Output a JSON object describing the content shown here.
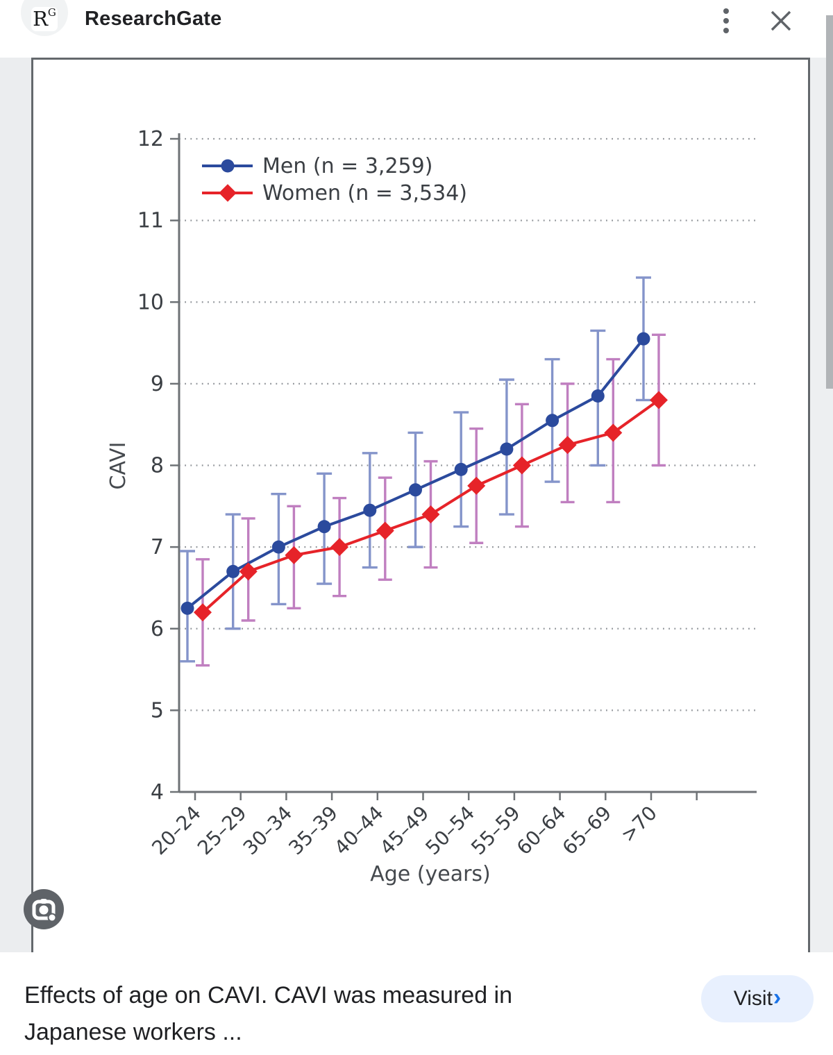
{
  "topbar": {
    "source_name": "ResearchGate",
    "logo_main": "R",
    "logo_sup": "G"
  },
  "chart_data": {
    "type": "line",
    "xlabel": "Age (years)",
    "ylabel": "CAVI",
    "ylim": [
      4,
      12
    ],
    "yticks": [
      4,
      5,
      6,
      7,
      8,
      9,
      10,
      11,
      12
    ],
    "grid": "horizontal dotted lines at every integer y",
    "legend_position": "top-left inside plot",
    "error_bars": "mean ± SD vertical bars with caps, dodged left (men) / right (women)",
    "categories": [
      "20–24",
      "25–29",
      "30–34",
      "35–39",
      "40–44",
      "45–49",
      "50–54",
      "55–59",
      "60–64",
      "65–69",
      ">70"
    ],
    "series": [
      {
        "name": "Men (n = 3,259)",
        "marker": "circle",
        "color": "#2b4a9d",
        "error_color": "#8494ca",
        "values": [
          6.25,
          6.7,
          7.0,
          7.25,
          7.45,
          7.7,
          7.95,
          8.2,
          8.55,
          8.85,
          9.55
        ],
        "err_low": [
          5.6,
          6.0,
          6.3,
          6.55,
          6.75,
          7.0,
          7.25,
          7.4,
          7.8,
          8.0,
          8.8
        ],
        "err_high": [
          6.95,
          7.4,
          7.65,
          7.9,
          8.15,
          8.4,
          8.65,
          9.05,
          9.3,
          9.65,
          10.3
        ]
      },
      {
        "name": "Women (n = 3,534)",
        "marker": "diamond",
        "color": "#e62329",
        "error_color": "#c07fc0",
        "values": [
          6.2,
          6.7,
          6.9,
          7.0,
          7.2,
          7.4,
          7.75,
          8.0,
          8.25,
          8.4,
          8.8
        ],
        "err_low": [
          5.55,
          6.1,
          6.25,
          6.4,
          6.6,
          6.75,
          7.05,
          7.25,
          7.55,
          7.55,
          8.0
        ],
        "err_high": [
          6.85,
          7.35,
          7.5,
          7.6,
          7.85,
          8.05,
          8.45,
          8.75,
          9.0,
          9.3,
          9.6
        ]
      }
    ]
  },
  "footer": {
    "caption_lines": [
      "Effects of age on CAVI. CAVI was measured in",
      "Japanese workers ..."
    ],
    "visit_label": "Visit",
    "visit_chevron": "›"
  },
  "colors": {
    "men_series": "#2b4a9d",
    "men_error_bar": "#8494ca",
    "women_series": "#e62329",
    "women_error_bar": "#c07fc0",
    "visit_pill_bg": "#e8f0fe",
    "visit_chevron_blue": "#1a73e8",
    "icon_gray": "#5f6368",
    "scrollbar_thumb": "#b1b4b7"
  }
}
